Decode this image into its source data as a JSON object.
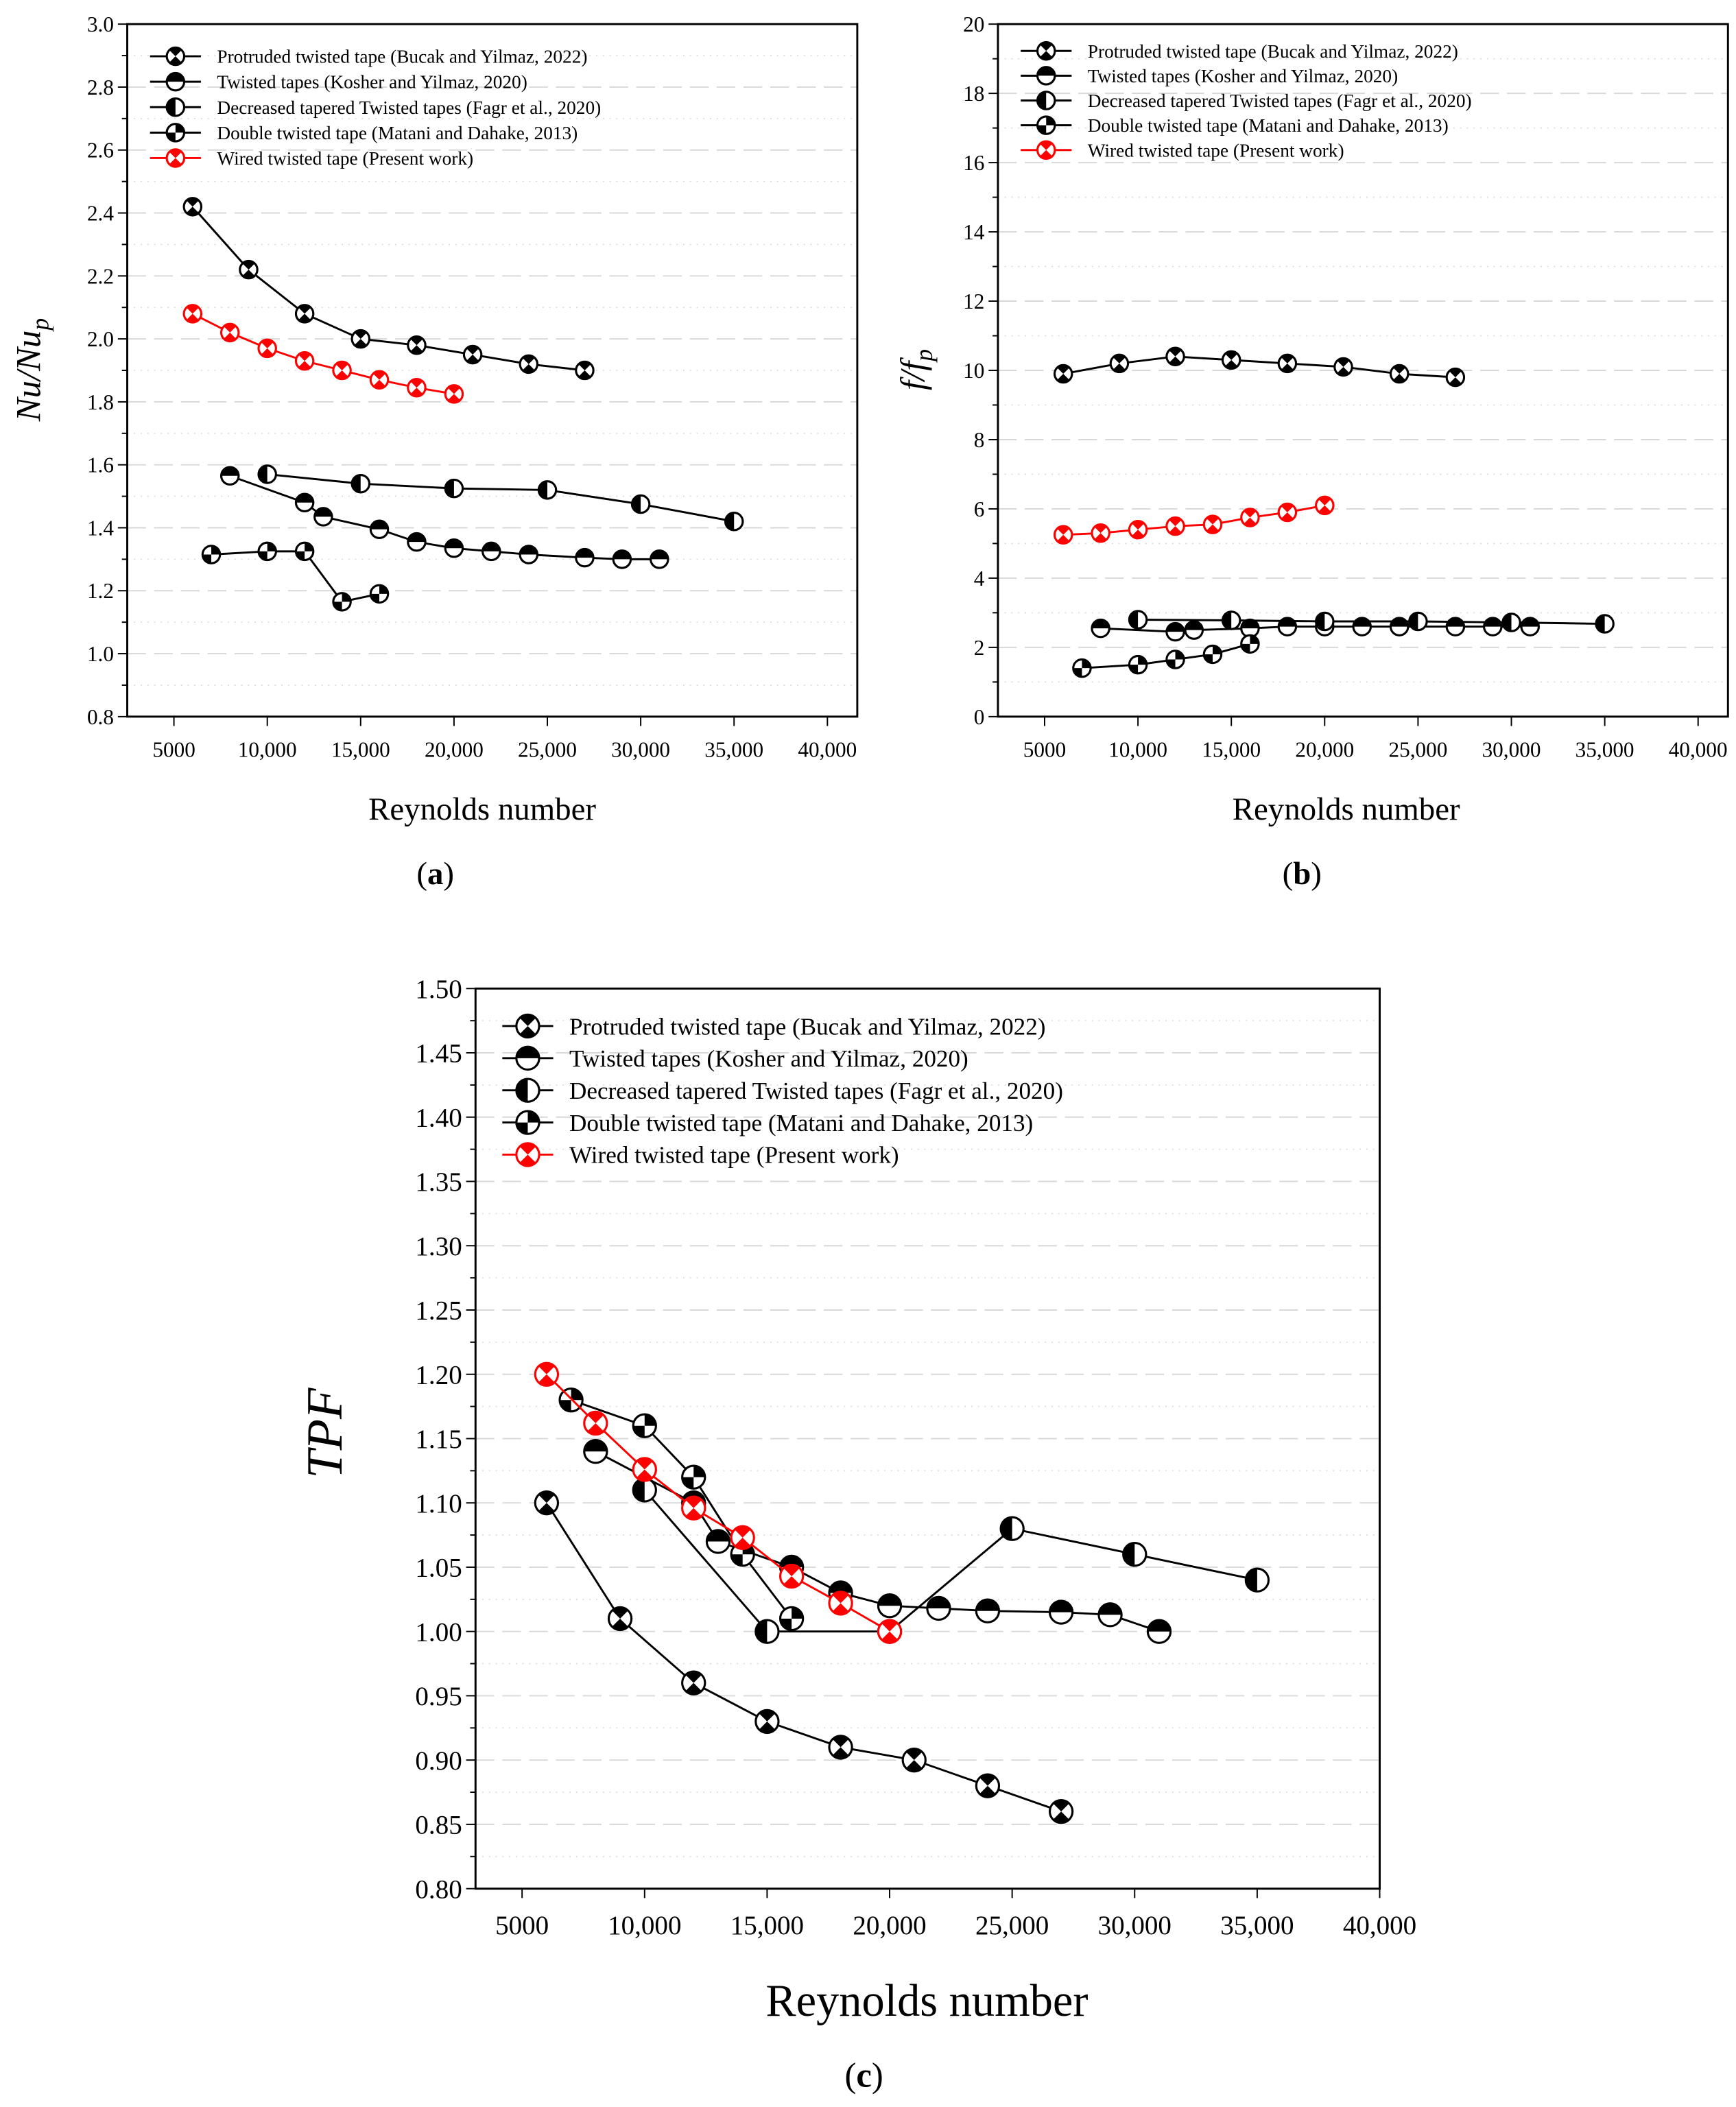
{
  "colors": {
    "black": "#000000",
    "red": "#ff0000",
    "grid": "#d8d8d8"
  },
  "legend_labels": [
    "Protruded twisted tape (Bucak and Yilmaz, 2022)",
    "Twisted tapes (Kosher and Yilmaz, 2020)",
    "Decreased tapered Twisted tapes (Fagr et al., 2020)",
    "Double twisted tape (Matani and Dahake, 2013)",
    "Wired twisted tape (Present work)"
  ],
  "chart_data": [
    {
      "id": "a",
      "type": "line",
      "caption": "a",
      "xlabel": "Reynolds number",
      "ylabel": "Nu/Nu",
      "ylabel_sub": "p",
      "xticks": [
        "5000",
        "10,000",
        "15,000",
        "20,000",
        "25,000",
        "30,000",
        "35,000",
        "40,000"
      ],
      "xtick_values": [
        5000,
        10000,
        15000,
        20000,
        25000,
        30000,
        35000,
        40000
      ],
      "ylim": [
        0.8,
        3.0
      ],
      "ystep": 0.2,
      "ydecimals": 1,
      "xlim": [
        2500,
        41600
      ],
      "legend_position": "top-left",
      "series": [
        {
          "name": "Protruded twisted tape (Bucak and Yilmaz, 2022)",
          "marker": "protruded",
          "x": [
            6000,
            9000,
            12000,
            15000,
            18000,
            21000,
            24000,
            27000
          ],
          "y": [
            2.42,
            2.22,
            2.08,
            2.0,
            1.98,
            1.95,
            1.92,
            1.9
          ]
        },
        {
          "name": "Twisted tapes (Kosher and Yilmaz, 2020)",
          "marker": "twisted",
          "x": [
            8000,
            12000,
            13000,
            16000,
            18000,
            20000,
            22000,
            24000,
            27000,
            29000,
            31000
          ],
          "y": [
            1.565,
            1.48,
            1.435,
            1.395,
            1.355,
            1.335,
            1.325,
            1.315,
            1.305,
            1.3,
            1.3
          ]
        },
        {
          "name": "Decreased tapered Twisted tapes (Fagr et al., 2020)",
          "marker": "decreased",
          "x": [
            10000,
            15000,
            20000,
            25000,
            30000,
            35000
          ],
          "y": [
            1.57,
            1.54,
            1.525,
            1.52,
            1.475,
            1.42
          ]
        },
        {
          "name": "Double twisted tape (Matani and Dahake, 2013)",
          "marker": "double",
          "x": [
            7000,
            10000,
            12000,
            14000,
            16000
          ],
          "y": [
            1.315,
            1.325,
            1.325,
            1.165,
            1.19
          ]
        },
        {
          "name": "Wired twisted tape (Present work)",
          "marker": "wired",
          "x": [
            6000,
            8000,
            10000,
            12000,
            14000,
            16000,
            18000,
            20000
          ],
          "y": [
            2.08,
            2.02,
            1.97,
            1.93,
            1.9,
            1.87,
            1.845,
            1.825
          ]
        }
      ]
    },
    {
      "id": "b",
      "type": "line",
      "caption": "b",
      "xlabel": "Reynolds number",
      "ylabel": "f/f",
      "ylabel_sub": "p",
      "xticks": [
        "5000",
        "10,000",
        "15,000",
        "20,000",
        "25,000",
        "30,000",
        "35,000",
        "40,000"
      ],
      "xtick_values": [
        5000,
        10000,
        15000,
        20000,
        25000,
        30000,
        35000,
        40000
      ],
      "ylim": [
        0,
        20
      ],
      "ystep": 2,
      "ydecimals": 0,
      "xlim": [
        2500,
        41600
      ],
      "legend_position": "top-left",
      "series": [
        {
          "name": "Protruded twisted tape (Bucak and Yilmaz, 2022)",
          "marker": "protruded",
          "x": [
            6000,
            9000,
            12000,
            15000,
            18000,
            21000,
            24000,
            27000
          ],
          "y": [
            9.9,
            10.2,
            10.4,
            10.3,
            10.2,
            10.1,
            9.9,
            9.8
          ]
        },
        {
          "name": "Twisted tapes (Kosher and Yilmaz, 2020)",
          "marker": "twisted",
          "x": [
            8000,
            12000,
            13000,
            16000,
            18000,
            20000,
            22000,
            24000,
            27000,
            29000,
            31000
          ],
          "y": [
            2.55,
            2.45,
            2.5,
            2.55,
            2.6,
            2.6,
            2.6,
            2.6,
            2.6,
            2.6,
            2.6
          ]
        },
        {
          "name": "Decreased tapered Twisted tapes (Fagr et al., 2020)",
          "marker": "decreased",
          "x": [
            10000,
            15000,
            20000,
            25000,
            30000,
            35000
          ],
          "y": [
            2.8,
            2.78,
            2.75,
            2.75,
            2.72,
            2.68
          ]
        },
        {
          "name": "Double twisted tape (Matani and Dahake, 2013)",
          "marker": "double",
          "x": [
            7000,
            10000,
            12000,
            14000,
            16000
          ],
          "y": [
            1.4,
            1.5,
            1.65,
            1.8,
            2.1
          ]
        },
        {
          "name": "Wired twisted tape (Present work)",
          "marker": "wired",
          "x": [
            6000,
            8000,
            10000,
            12000,
            14000,
            16000,
            18000,
            20000
          ],
          "y": [
            5.25,
            5.3,
            5.4,
            5.5,
            5.55,
            5.75,
            5.9,
            6.1
          ]
        }
      ]
    },
    {
      "id": "c",
      "type": "line",
      "caption": "c",
      "xlabel": "Reynolds number",
      "ylabel": "TPF",
      "ylabel_sub": "",
      "xticks": [
        "5000",
        "10,000",
        "15,000",
        "20,000",
        "25,000",
        "30,000",
        "35,000",
        "40,000"
      ],
      "xtick_values": [
        5000,
        10000,
        15000,
        20000,
        25000,
        30000,
        35000,
        40000
      ],
      "ylim": [
        0.8,
        1.5
      ],
      "ystep": 0.05,
      "ydecimals": 2,
      "xlim": [
        3100,
        40000
      ],
      "legend_position": "top-left",
      "series": [
        {
          "name": "Protruded twisted tape (Bucak and Yilmaz, 2022)",
          "marker": "protruded",
          "x": [
            6000,
            9000,
            12000,
            15000,
            18000,
            21000,
            24000,
            27000
          ],
          "y": [
            1.1,
            1.01,
            0.96,
            0.93,
            0.91,
            0.9,
            0.88,
            0.86
          ]
        },
        {
          "name": "Twisted tapes (Kosher and Yilmaz, 2020)",
          "marker": "twisted",
          "x": [
            8000,
            12000,
            13000,
            16000,
            18000,
            20000,
            22000,
            24000,
            27000,
            29000,
            31000
          ],
          "y": [
            1.14,
            1.1,
            1.07,
            1.05,
            1.03,
            1.02,
            1.018,
            1.016,
            1.015,
            1.013,
            1.0
          ]
        },
        {
          "name": "Decreased tapered Twisted tapes (Fagr et al., 2020)",
          "marker": "decreased",
          "x": [
            10000,
            15000,
            20000,
            25000,
            30000,
            35000
          ],
          "y": [
            1.11,
            1.0,
            1.0,
            1.08,
            1.06,
            1.04
          ]
        },
        {
          "name": "Double twisted tape (Matani and Dahake, 2013)",
          "marker": "double",
          "x": [
            7000,
            10000,
            12000,
            14000,
            16000
          ],
          "y": [
            1.18,
            1.16,
            1.12,
            1.06,
            1.01
          ]
        },
        {
          "name": "Wired twisted tape (Present work)",
          "marker": "wired",
          "x": [
            6000,
            8000,
            10000,
            12000,
            14000,
            16000,
            18000,
            20000
          ],
          "y": [
            1.2,
            1.162,
            1.126,
            1.096,
            1.073,
            1.043,
            1.022,
            1.0
          ]
        }
      ]
    }
  ]
}
